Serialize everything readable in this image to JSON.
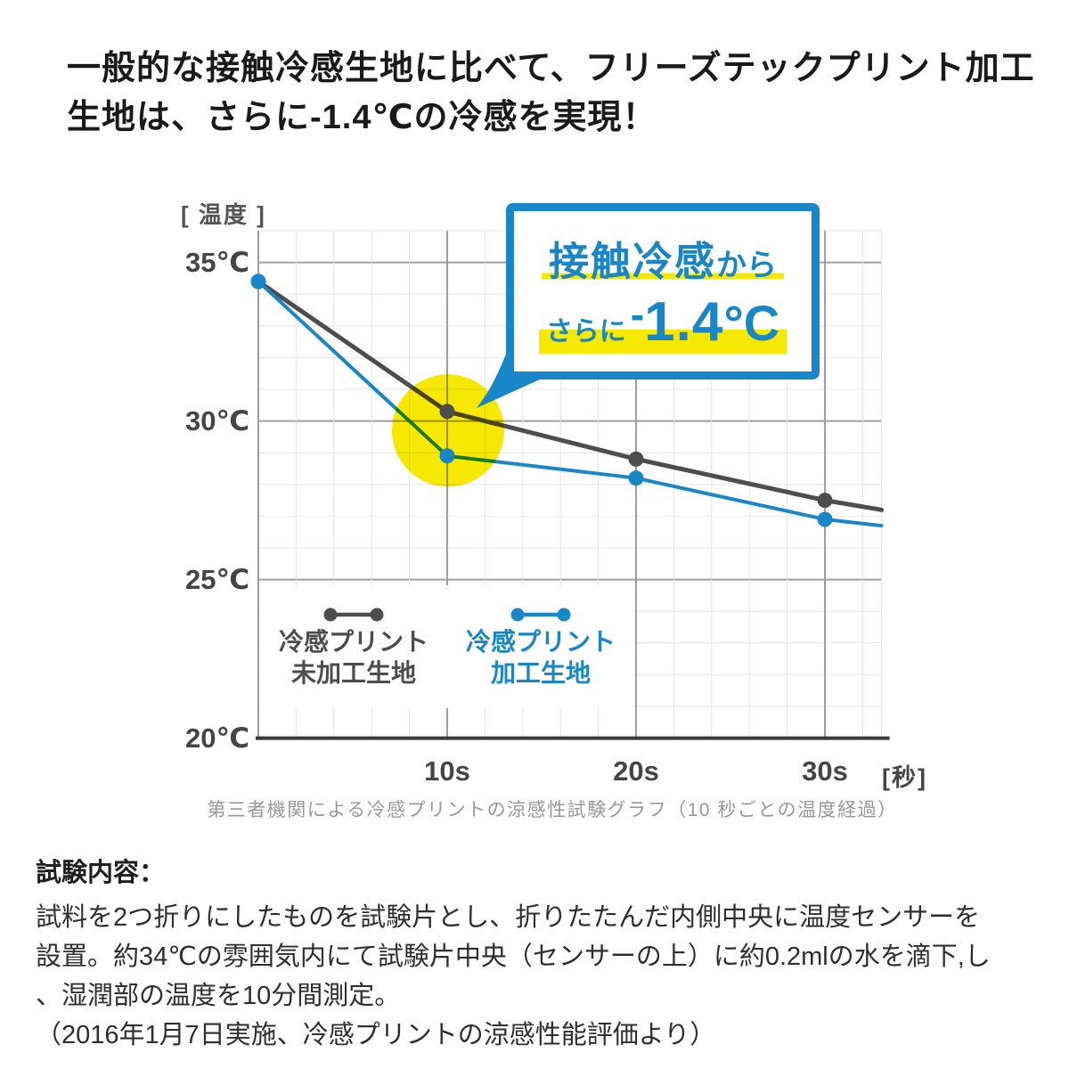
{
  "headline": {
    "line1": "一般的な接触冷感生地に比べて、フリーズテックプリント加工",
    "line2": "生地は、さらに-1.4℃の冷感を実現！"
  },
  "chart": {
    "y_unit": "[ 温度 ]",
    "x_unit": "[秒]",
    "y_ticks": [
      {
        "label": "35℃",
        "value": 35
      },
      {
        "label": "30℃",
        "value": 30
      },
      {
        "label": "25℃",
        "value": 25
      },
      {
        "label": "20℃",
        "value": 20
      }
    ],
    "x_ticks": [
      {
        "label": "10s",
        "value": 10
      },
      {
        "label": "20s",
        "value": 20
      },
      {
        "label": "30s",
        "value": 30
      }
    ],
    "caption": "第三者機関による冷感プリントの涼感性試験グラフ（10 秒ごとの温度経過）",
    "legend": [
      {
        "line1": "冷感プリント",
        "line2": "未加工生地",
        "color": "#4d4d4d"
      },
      {
        "line1": "冷感プリント",
        "line2": "加工生地",
        "color": "#1787c9"
      }
    ],
    "callout": {
      "line1_highlight": "接触冷感",
      "line1_tail": "から",
      "line2_small": "さらに",
      "line2_minus": "-",
      "line2_big": "1.4",
      "line2_unit": "°C"
    }
  },
  "chart_data": {
    "type": "line",
    "title": "冷感プリントの涼感性試験グラフ",
    "xlabel": "秒",
    "ylabel": "温度",
    "x": [
      0,
      10,
      20,
      30,
      33
    ],
    "xlim": [
      0,
      33
    ],
    "ylim": [
      20,
      36
    ],
    "grid": true,
    "series": [
      {
        "name": "冷感プリント未加工生地",
        "color": "#4d4d4d",
        "values": [
          34.4,
          30.3,
          28.8,
          27.5,
          27.2
        ],
        "markers_at": [
          0,
          10,
          20,
          30
        ]
      },
      {
        "name": "冷感プリント加工生地",
        "color": "#1787c9",
        "values": [
          34.4,
          28.9,
          28.2,
          26.9,
          26.7
        ],
        "markers_at": [
          0,
          10,
          20,
          30
        ]
      }
    ],
    "highlight_circle": {
      "x": 10,
      "y": 29.7,
      "color": "#f6e800"
    },
    "delta_annotation": "接触冷感からさらに-1.4°C"
  },
  "details": {
    "heading": "試験内容：",
    "line1": "試料を2つ折りにしたものを試験片とし、折りたたんだ内側中央に温度センサーを",
    "line2": "設置。約34℃の雰囲気内にて試験片中央（センサーの上）に約0.2mlの水を滴下,し",
    "line3": "、湿潤部の温度を10分間測定。",
    "note": "（2016年1月7日実施、冷感プリントの涼感性能評価より）"
  },
  "colors": {
    "accent_blue": "#1787c9",
    "dark_gray_line": "#4d4d4d",
    "highlight_yellow": "#f6e800",
    "grid_minor": "#e4e4e4",
    "grid_major": "#9f9f9f",
    "axis_dark": "#3a3a3a"
  }
}
